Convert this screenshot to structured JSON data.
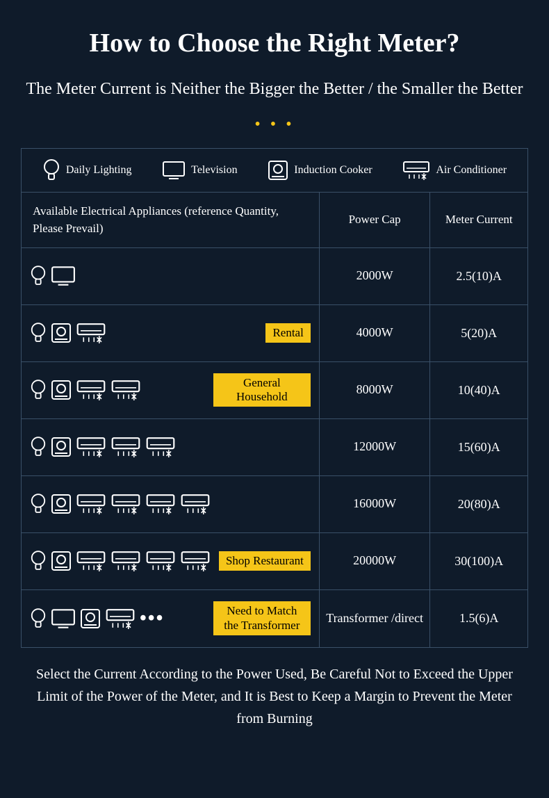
{
  "title": "How to Choose the Right Meter?",
  "subtitle": "The Meter Current is Neither the Bigger the Better / the Smaller the Better",
  "dots": "• • •",
  "legend": {
    "bulb": "Daily Lighting",
    "tv": "Television",
    "cooker": "Induction Cooker",
    "ac": "Air Conditioner"
  },
  "header": {
    "apps": "Available Electrical Appliances (reference Quantity, Please Prevail)",
    "power": "Power Cap",
    "current": "Meter Current"
  },
  "rows": [
    {
      "icons": [
        "bulb",
        "tv"
      ],
      "tag": "",
      "power": "2000W",
      "current": "2.5(10)A"
    },
    {
      "icons": [
        "bulb",
        "cooker",
        "ac"
      ],
      "tag": "Rental",
      "power": "4000W",
      "current": "5(20)A"
    },
    {
      "icons": [
        "bulb",
        "cooker",
        "ac",
        "ac"
      ],
      "tag": "General Household",
      "power": "8000W",
      "current": "10(40)A"
    },
    {
      "icons": [
        "bulb",
        "cooker",
        "ac",
        "ac",
        "ac"
      ],
      "tag": "",
      "power": "12000W",
      "current": "15(60)A"
    },
    {
      "icons": [
        "bulb",
        "cooker",
        "ac",
        "ac",
        "ac",
        "ac"
      ],
      "tag": "",
      "power": "16000W",
      "current": "20(80)A"
    },
    {
      "icons": [
        "bulb",
        "cooker",
        "ac",
        "ac",
        "ac",
        "ac"
      ],
      "tag": "Shop Restaurant",
      "power": "20000W",
      "current": "30(100)A"
    },
    {
      "icons": [
        "bulb",
        "tv",
        "cooker",
        "ac",
        "ellipsis"
      ],
      "tag": "Need to Match the Transformer",
      "power": "Transformer /direct",
      "current": "1.5(6)A"
    }
  ],
  "footer": "Select the Current According to the Power Used, Be Careful Not to Exceed the Upper Limit of the Power of the Meter, and It is Best to Keep a Margin to Prevent the Meter from Burning",
  "colors": {
    "bg": "#0f1b2a",
    "border": "#3a5068",
    "accent": "#f5c518",
    "text": "#ffffff"
  }
}
